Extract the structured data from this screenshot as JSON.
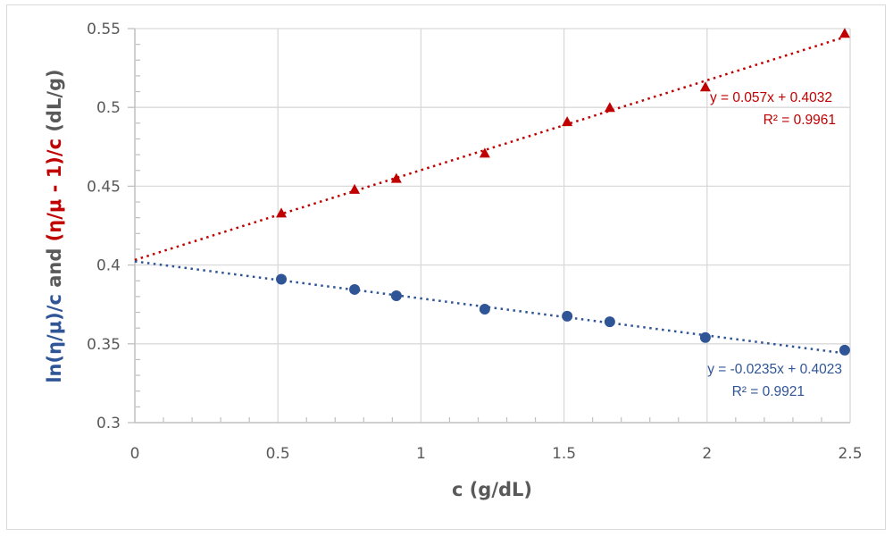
{
  "chart_data": {
    "type": "scatter",
    "xlabel": "c (g/dL)",
    "ylabel_parts": [
      {
        "text": "ln(η/μ)/c",
        "color": "#2f5597"
      },
      {
        "text": " and ",
        "color": "#595959"
      },
      {
        "text": "(η/μ - 1)/c",
        "color": "#c00000"
      },
      {
        "text": " (dL/g)",
        "color": "#595959"
      }
    ],
    "xlim": [
      0,
      2.5
    ],
    "ylim": [
      0.3,
      0.55
    ],
    "x_ticks": [
      "0",
      "0.5",
      "1",
      "1.5",
      "2",
      "2.5"
    ],
    "y_ticks": [
      "0.3",
      "0.35",
      "0.4",
      "0.45",
      "0.5",
      "0.55"
    ],
    "grid": true,
    "series": [
      {
        "marker": "triangle",
        "color": "#c00000",
        "x": [
          0.512,
          0.768,
          0.914,
          1.223,
          1.511,
          1.66,
          1.994,
          2.481
        ],
        "y": [
          0.433,
          0.448,
          0.455,
          0.471,
          0.491,
          0.5,
          0.513,
          0.547
        ],
        "trendline": {
          "slope": 0.057,
          "intercept": 0.4032,
          "style": "dotted",
          "equation": "y = 0.057x + 0.4032",
          "r2": "R² = 0.9961"
        }
      },
      {
        "marker": "circle",
        "color": "#2f5597",
        "x": [
          0.512,
          0.768,
          0.914,
          1.223,
          1.511,
          1.66,
          1.994,
          2.481
        ],
        "y": [
          0.391,
          0.3845,
          0.3805,
          0.372,
          0.3675,
          0.364,
          0.354,
          0.346
        ],
        "trendline": {
          "slope": -0.0235,
          "intercept": 0.4023,
          "style": "dotted",
          "equation": "y = -0.0235x + 0.4023",
          "r2": "R² = 0.9921"
        }
      }
    ]
  }
}
